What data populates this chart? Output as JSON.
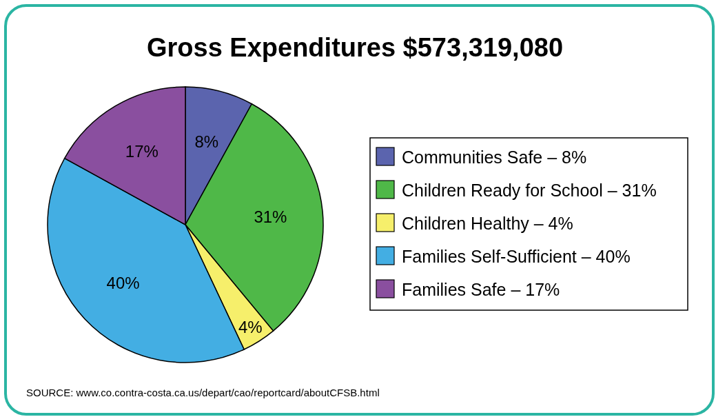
{
  "chart_data": {
    "type": "pie",
    "title": "Gross Expenditures $573,319,080",
    "categories": [
      "Communities Safe – 8%",
      "Children Ready for School – 31%",
      "Children Healthy – 4%",
      "Families Self-Sufficient – 40%",
      "Families Safe – 17%"
    ],
    "values": [
      8,
      31,
      4,
      40,
      17
    ],
    "colors": [
      "#5b64ae",
      "#4fb848",
      "#f6ef6b",
      "#43aee3",
      "#8a4f9f"
    ],
    "value_labels": [
      "8%",
      "31%",
      "4%",
      "40%",
      "17%"
    ],
    "legend": "right",
    "annotations": [
      "SOURCE: www.co.contra-costa.ca.us/depart/cao/reportcard/aboutCFSB.html"
    ]
  }
}
